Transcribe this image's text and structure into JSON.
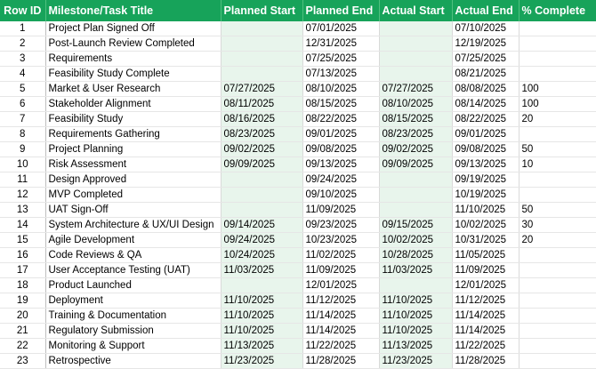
{
  "headers": [
    "Row ID",
    "Milestone/Task Title",
    "Planned Start",
    "Planned End",
    "Actual Start",
    "Actual End",
    "% Complete"
  ],
  "rows": [
    {
      "id": "1",
      "title": "Project Plan Signed Off",
      "ps": "",
      "pe": "07/01/2025",
      "as": "",
      "ae": "07/10/2025",
      "pct": ""
    },
    {
      "id": "2",
      "title": "Post-Launch Review Completed",
      "ps": "",
      "pe": "12/31/2025",
      "as": "",
      "ae": "12/19/2025",
      "pct": ""
    },
    {
      "id": "3",
      "title": "Requirements",
      "ps": "",
      "pe": "07/25/2025",
      "as": "",
      "ae": "07/25/2025",
      "pct": ""
    },
    {
      "id": "4",
      "title": "Feasibility Study Complete",
      "ps": "",
      "pe": "07/13/2025",
      "as": "",
      "ae": "08/21/2025",
      "pct": ""
    },
    {
      "id": "5",
      "title": "Market & User Research",
      "ps": "07/27/2025",
      "pe": "08/10/2025",
      "as": "07/27/2025",
      "ae": "08/08/2025",
      "pct": "100"
    },
    {
      "id": "6",
      "title": "Stakeholder Alignment",
      "ps": "08/11/2025",
      "pe": "08/15/2025",
      "as": "08/10/2025",
      "ae": "08/14/2025",
      "pct": "100"
    },
    {
      "id": "7",
      "title": "Feasibility Study",
      "ps": "08/16/2025",
      "pe": "08/22/2025",
      "as": "08/15/2025",
      "ae": "08/22/2025",
      "pct": "20"
    },
    {
      "id": "8",
      "title": "Requirements Gathering",
      "ps": "08/23/2025",
      "pe": "09/01/2025",
      "as": "08/23/2025",
      "ae": "09/01/2025",
      "pct": ""
    },
    {
      "id": "9",
      "title": "Project Planning",
      "ps": "09/02/2025",
      "pe": "09/08/2025",
      "as": "09/02/2025",
      "ae": "09/08/2025",
      "pct": "50"
    },
    {
      "id": "10",
      "title": "Risk Assessment",
      "ps": "09/09/2025",
      "pe": "09/13/2025",
      "as": "09/09/2025",
      "ae": "09/13/2025",
      "pct": "10"
    },
    {
      "id": "11",
      "title": "Design Approved",
      "ps": "",
      "pe": "09/24/2025",
      "as": "",
      "ae": "09/19/2025",
      "pct": ""
    },
    {
      "id": "12",
      "title": "MVP Completed",
      "ps": "",
      "pe": "09/10/2025",
      "as": "",
      "ae": "10/19/2025",
      "pct": ""
    },
    {
      "id": "13",
      "title": "UAT Sign-Off",
      "ps": "",
      "pe": "11/09/2025",
      "as": "",
      "ae": "11/10/2025",
      "pct": "50"
    },
    {
      "id": "14",
      "title": "System Architecture & UX/UI Design",
      "ps": "09/14/2025",
      "pe": "09/23/2025",
      "as": "09/15/2025",
      "ae": "10/02/2025",
      "pct": "30"
    },
    {
      "id": "15",
      "title": "Agile Development",
      "ps": "09/24/2025",
      "pe": "10/23/2025",
      "as": "10/02/2025",
      "ae": "10/31/2025",
      "pct": "20"
    },
    {
      "id": "16",
      "title": "Code Reviews & QA",
      "ps": "10/24/2025",
      "pe": "11/02/2025",
      "as": "10/28/2025",
      "ae": "11/05/2025",
      "pct": ""
    },
    {
      "id": "17",
      "title": "User Acceptance Testing (UAT)",
      "ps": "11/03/2025",
      "pe": "11/09/2025",
      "as": "11/03/2025",
      "ae": "11/09/2025",
      "pct": ""
    },
    {
      "id": "18",
      "title": "Product Launched",
      "ps": "",
      "pe": "12/01/2025",
      "as": "",
      "ae": "12/01/2025",
      "pct": ""
    },
    {
      "id": "19",
      "title": "Deployment",
      "ps": "11/10/2025",
      "pe": "11/12/2025",
      "as": "11/10/2025",
      "ae": "11/12/2025",
      "pct": ""
    },
    {
      "id": "20",
      "title": "Training & Documentation",
      "ps": "11/10/2025",
      "pe": "11/14/2025",
      "as": "11/10/2025",
      "ae": "11/14/2025",
      "pct": ""
    },
    {
      "id": "21",
      "title": "Regulatory Submission",
      "ps": "11/10/2025",
      "pe": "11/14/2025",
      "as": "11/10/2025",
      "ae": "11/14/2025",
      "pct": ""
    },
    {
      "id": "22",
      "title": "Monitoring & Support",
      "ps": "11/13/2025",
      "pe": "11/22/2025",
      "as": "11/13/2025",
      "ae": "11/22/2025",
      "pct": ""
    },
    {
      "id": "23",
      "title": "Retrospective",
      "ps": "11/23/2025",
      "pe": "11/28/2025",
      "as": "11/23/2025",
      "ae": "11/28/2025",
      "pct": ""
    }
  ],
  "colors": {
    "header_bg": "#17a35a",
    "header_text": "#ffffff",
    "shaded_column": "#e8f5ec"
  }
}
